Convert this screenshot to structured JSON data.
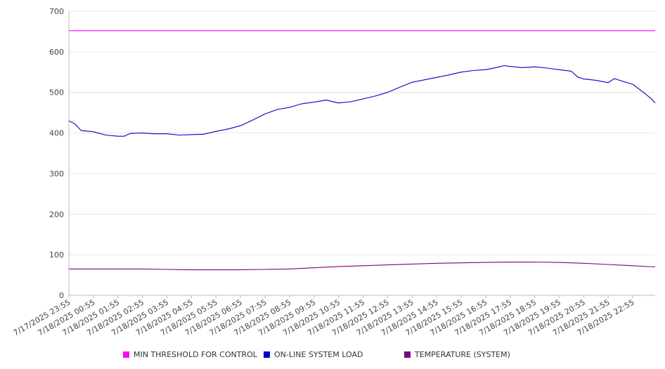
{
  "chart_data": {
    "type": "line",
    "x_tick_labels": [
      "7/17/2025 23:55",
      "7/18/2025 00:55",
      "7/18/2025 01:55",
      "7/18/2025 02:55",
      "7/18/2025 03:55",
      "7/18/2025 04:55",
      "7/18/2025 05:55",
      "7/18/2025 06:55",
      "7/18/2025 07:55",
      "7/18/2025 08:55",
      "7/18/2025 09:55",
      "7/18/2025 10:55",
      "7/18/2025 11:55",
      "7/18/2025 12:55",
      "7/18/2025 13:55",
      "7/18/2025 14:55",
      "7/18/2025 15:55",
      "7/18/2025 16:55",
      "7/18/2025 17:55",
      "7/18/2025 18:55",
      "7/18/2025 19:55",
      "7/18/2025 20:55",
      "7/18/2025 21:55",
      "7/18/2025 22:55"
    ],
    "x_end": "7/18/2025 23:50",
    "ylim": [
      0,
      700
    ],
    "y_ticks": [
      0,
      100,
      200,
      300,
      400,
      500,
      600,
      700
    ],
    "grid": true,
    "legend_position": "bottom",
    "series": [
      {
        "name": "MIN THRESHOLD FOR CONTROL",
        "color": "#ff00ff",
        "points": [
          [
            "7/17/2025 23:55",
            652
          ],
          [
            "7/18/2025 23:50",
            652
          ]
        ]
      },
      {
        "name": "ON-LINE SYSTEM LOAD",
        "color": "#0000cc",
        "points": [
          [
            "7/17/2025 23:55",
            430
          ],
          [
            "7/18/2025 00:10",
            422
          ],
          [
            "7/18/2025 00:25",
            406
          ],
          [
            "7/18/2025 00:55",
            403
          ],
          [
            "7/18/2025 01:25",
            395
          ],
          [
            "7/18/2025 01:55",
            392
          ],
          [
            "7/18/2025 02:10",
            392
          ],
          [
            "7/18/2025 02:25",
            399
          ],
          [
            "7/18/2025 02:55",
            400
          ],
          [
            "7/18/2025 03:25",
            398
          ],
          [
            "7/18/2025 03:55",
            398
          ],
          [
            "7/18/2025 04:25",
            395
          ],
          [
            "7/18/2025 04:55",
            396
          ],
          [
            "7/18/2025 05:25",
            397
          ],
          [
            "7/18/2025 05:55",
            404
          ],
          [
            "7/18/2025 06:25",
            410
          ],
          [
            "7/18/2025 06:55",
            418
          ],
          [
            "7/18/2025 07:25",
            432
          ],
          [
            "7/18/2025 07:55",
            447
          ],
          [
            "7/18/2025 08:25",
            458
          ],
          [
            "7/18/2025 08:55",
            463
          ],
          [
            "7/18/2025 09:25",
            472
          ],
          [
            "7/18/2025 09:55",
            476
          ],
          [
            "7/18/2025 10:25",
            481
          ],
          [
            "7/18/2025 10:55",
            474
          ],
          [
            "7/18/2025 11:25",
            477
          ],
          [
            "7/18/2025 11:55",
            484
          ],
          [
            "7/18/2025 12:25",
            491
          ],
          [
            "7/18/2025 12:55",
            500
          ],
          [
            "7/18/2025 13:25",
            513
          ],
          [
            "7/18/2025 13:55",
            525
          ],
          [
            "7/18/2025 14:25",
            531
          ],
          [
            "7/18/2025 14:55",
            537
          ],
          [
            "7/18/2025 15:25",
            543
          ],
          [
            "7/18/2025 15:55",
            550
          ],
          [
            "7/18/2025 16:25",
            554
          ],
          [
            "7/18/2025 16:55",
            556
          ],
          [
            "7/18/2025 17:25",
            562
          ],
          [
            "7/18/2025 17:40",
            566
          ],
          [
            "7/18/2025 17:55",
            564
          ],
          [
            "7/18/2025 18:25",
            561
          ],
          [
            "7/18/2025 18:55",
            563
          ],
          [
            "7/18/2025 19:25",
            560
          ],
          [
            "7/18/2025 19:55",
            556
          ],
          [
            "7/18/2025 20:25",
            552
          ],
          [
            "7/18/2025 20:40",
            538
          ],
          [
            "7/18/2025 20:55",
            533
          ],
          [
            "7/18/2025 21:25",
            530
          ],
          [
            "7/18/2025 21:55",
            524
          ],
          [
            "7/18/2025 22:10",
            534
          ],
          [
            "7/18/2025 22:25",
            529
          ],
          [
            "7/18/2025 22:55",
            520
          ],
          [
            "7/18/2025 23:25",
            497
          ],
          [
            "7/18/2025 23:40",
            485
          ],
          [
            "7/18/2025 23:50",
            474
          ]
        ]
      },
      {
        "name": "TEMPERATURE (SYSTEM)",
        "color": "#800080",
        "points": [
          [
            "7/17/2025 23:55",
            65
          ],
          [
            "7/18/2025 00:55",
            65
          ],
          [
            "7/18/2025 01:55",
            65
          ],
          [
            "7/18/2025 02:55",
            65
          ],
          [
            "7/18/2025 03:55",
            64
          ],
          [
            "7/18/2025 04:55",
            63
          ],
          [
            "7/18/2025 05:55",
            63
          ],
          [
            "7/18/2025 06:55",
            63
          ],
          [
            "7/18/2025 07:55",
            64
          ],
          [
            "7/18/2025 08:55",
            65
          ],
          [
            "7/18/2025 09:55",
            68
          ],
          [
            "7/18/2025 10:55",
            71
          ],
          [
            "7/18/2025 11:55",
            73
          ],
          [
            "7/18/2025 12:55",
            75
          ],
          [
            "7/18/2025 13:55",
            77
          ],
          [
            "7/18/2025 14:55",
            79
          ],
          [
            "7/18/2025 15:55",
            80
          ],
          [
            "7/18/2025 16:55",
            81
          ],
          [
            "7/18/2025 17:55",
            82
          ],
          [
            "7/18/2025 18:55",
            82
          ],
          [
            "7/18/2025 19:55",
            81
          ],
          [
            "7/18/2025 20:55",
            79
          ],
          [
            "7/18/2025 21:55",
            76
          ],
          [
            "7/18/2025 22:55",
            73
          ],
          [
            "7/18/2025 23:50",
            70
          ]
        ]
      }
    ]
  }
}
